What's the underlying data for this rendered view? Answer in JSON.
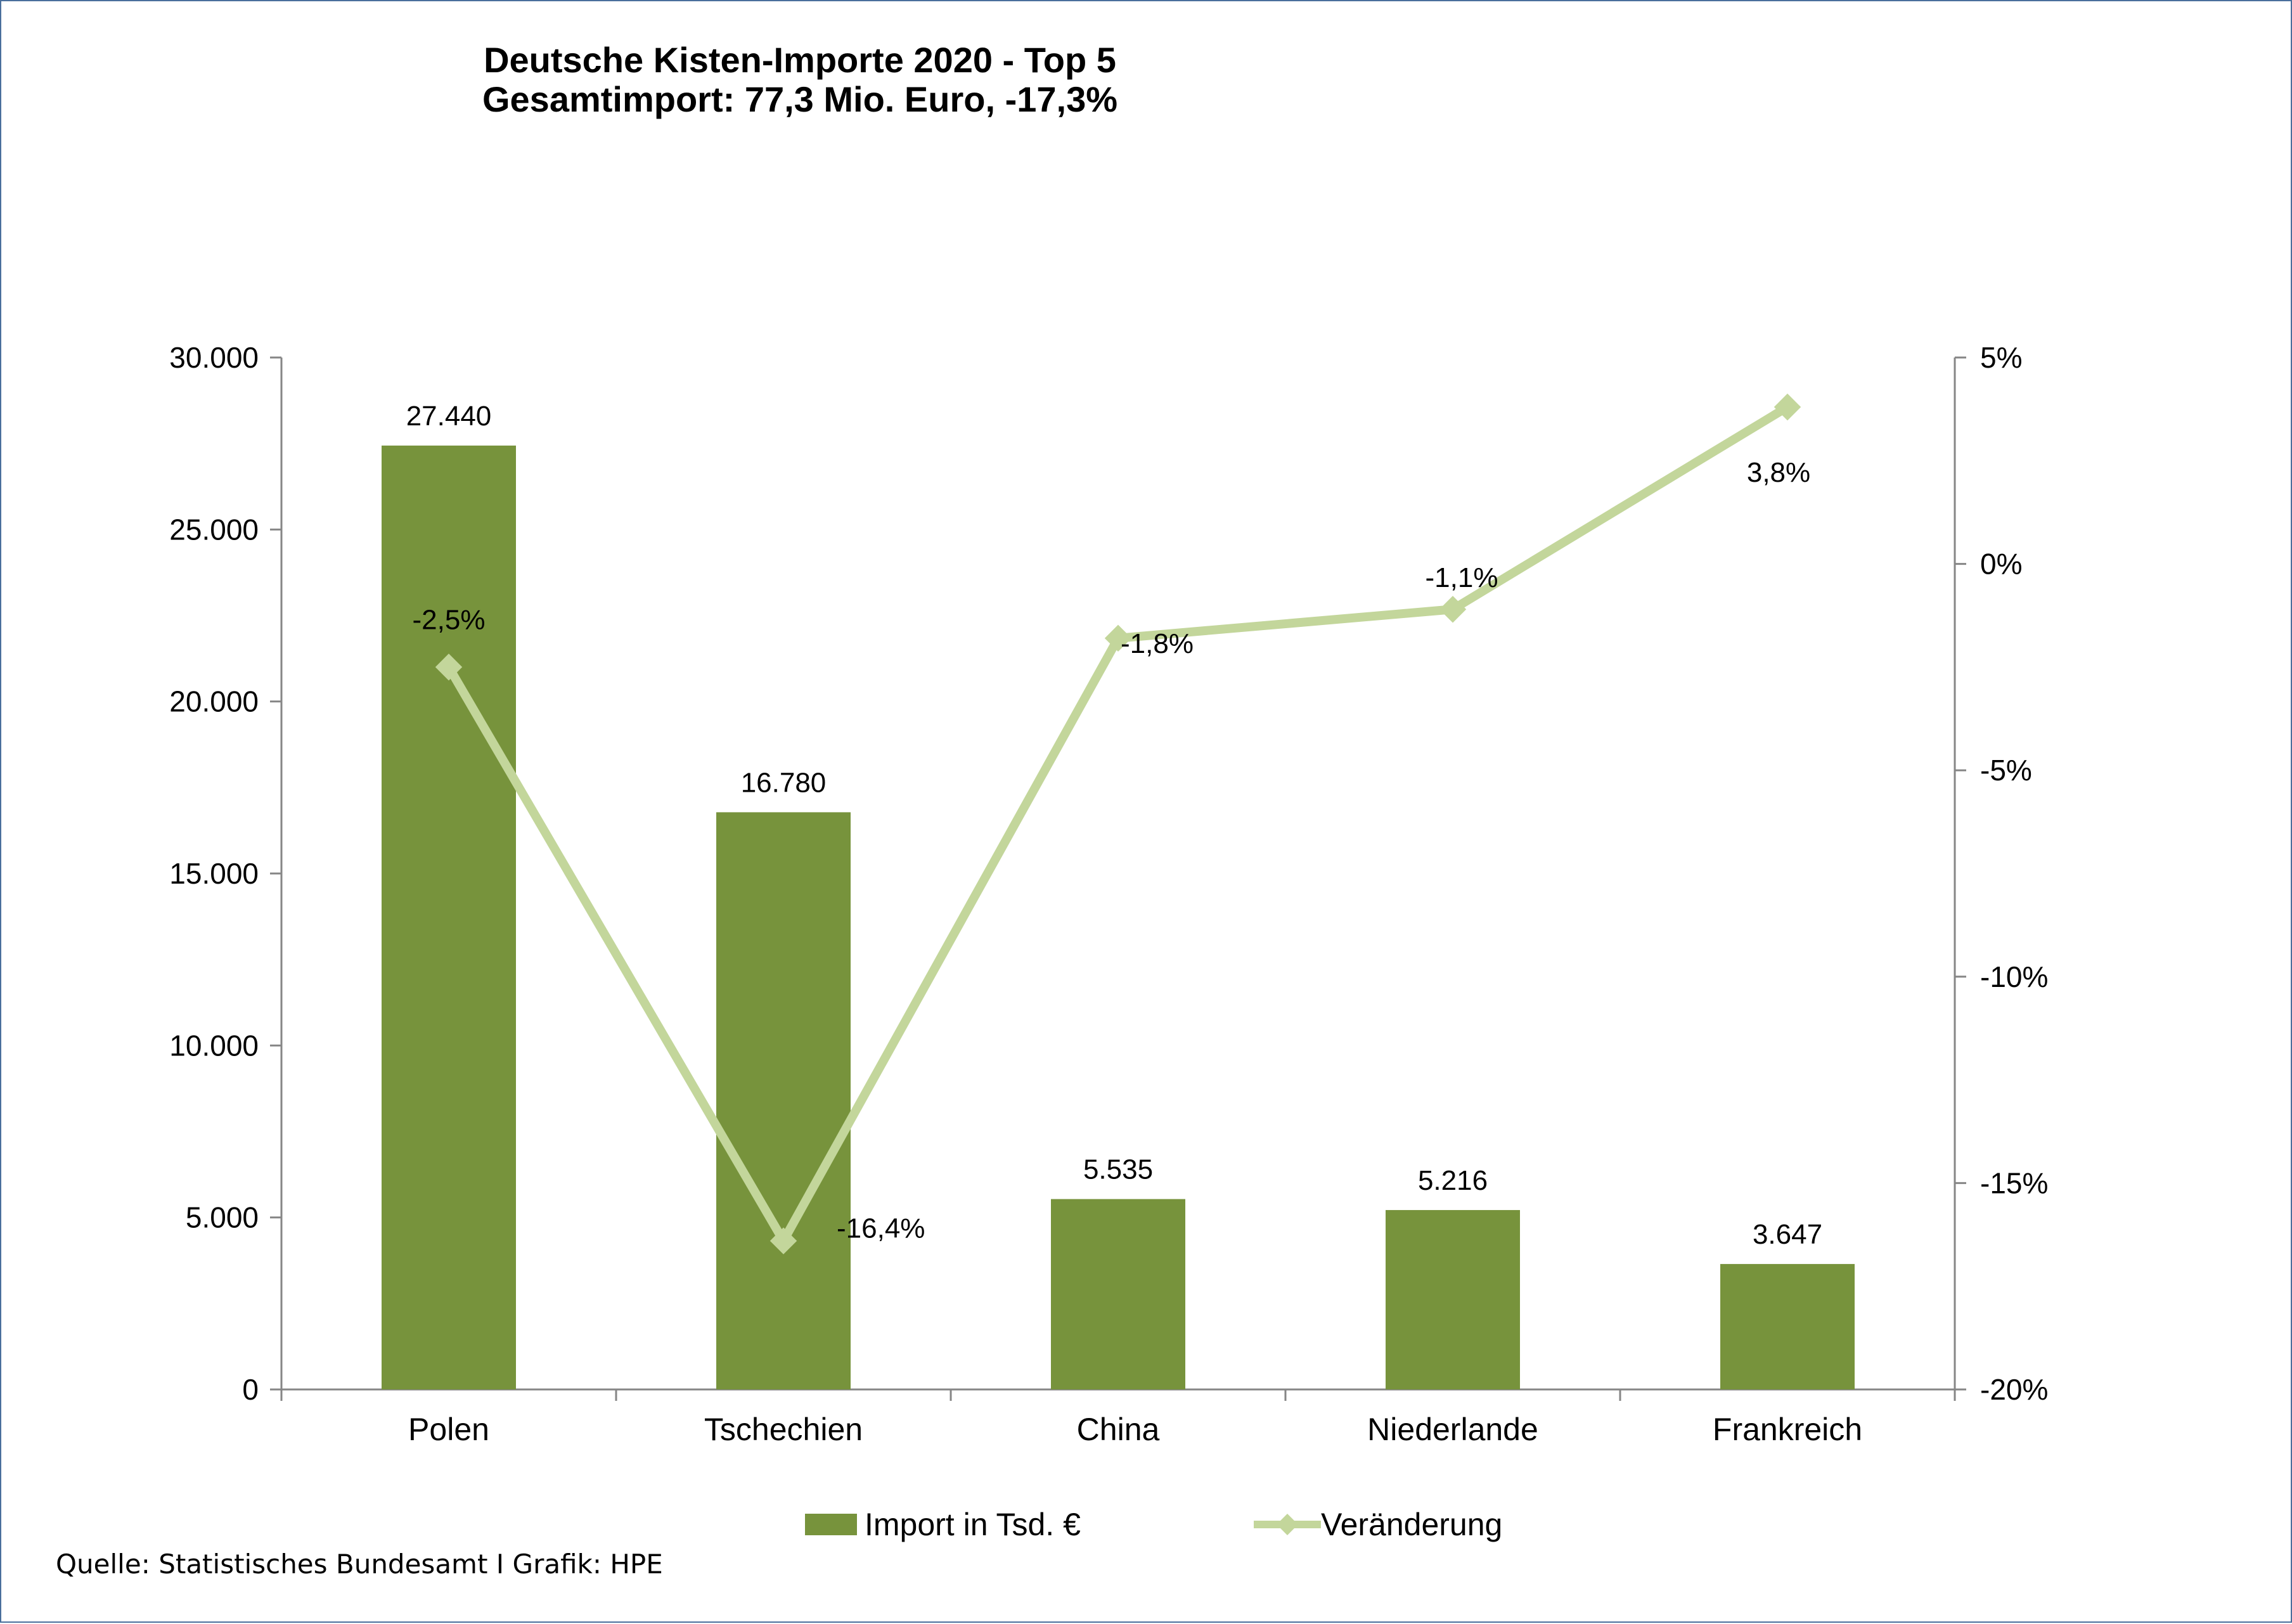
{
  "chart_data": {
    "type": "bar",
    "title": "Deutsche Kisten-Importe 2020 -  Top 5",
    "subtitle": "Gesamtimport: 77,3 Mio. Euro, -17,3%",
    "categories": [
      "Polen",
      "Tschechien",
      "China",
      "Niederlande",
      "Frankreich"
    ],
    "series": [
      {
        "name": "Import in Tsd. €",
        "type": "bar",
        "axis": "left",
        "color": "#77933c",
        "values": [
          27440,
          16780,
          5535,
          5216,
          3647
        ],
        "labels": [
          "27.440",
          "16.780",
          "5.535",
          "5.216",
          "3.647"
        ]
      },
      {
        "name": "Veränderung",
        "type": "line",
        "axis": "right",
        "color": "#c3d69b",
        "marker": "diamond",
        "values": [
          -2.5,
          -16.4,
          -1.8,
          -1.1,
          3.8
        ],
        "labels": [
          "-2,5%",
          "-16,4%",
          "-1,8%",
          "-1,1%",
          "3,8%"
        ]
      }
    ],
    "y_left": {
      "min": 0,
      "max": 30000,
      "ticks": [
        0,
        5000,
        10000,
        15000,
        20000,
        25000,
        30000
      ],
      "tick_labels": [
        "0",
        "5.000",
        "10.000",
        "15.000",
        "20.000",
        "25.000",
        "30.000"
      ]
    },
    "y_right": {
      "min": -20,
      "max": 5,
      "ticks": [
        -20,
        -15,
        -10,
        -5,
        0,
        5
      ],
      "tick_labels": [
        "-20%",
        "-15%",
        "-10%",
        "-5%",
        "0%",
        "5%"
      ]
    },
    "grid": false,
    "legend_position": "bottom"
  },
  "source_text": "Quelle: Statistisches Bundesamt I Grafik: HPE"
}
